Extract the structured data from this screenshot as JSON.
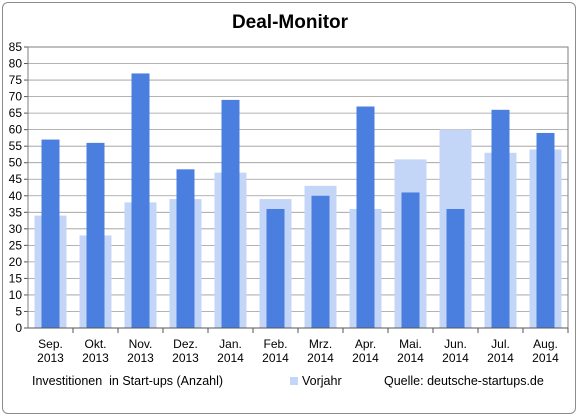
{
  "chart_data": {
    "type": "bar",
    "title": "Deal-Monitor",
    "categories": [
      [
        "Sep.",
        "2013"
      ],
      [
        "Okt.",
        "2013"
      ],
      [
        "Nov.",
        "2013"
      ],
      [
        "Dez.",
        "2013"
      ],
      [
        "Jan.",
        "2014"
      ],
      [
        "Feb.",
        "2014"
      ],
      [
        "Mrz.",
        "2014"
      ],
      [
        "Apr.",
        "2014"
      ],
      [
        "Mai.",
        "2014"
      ],
      [
        "Jun.",
        "2014"
      ],
      [
        "Jul.",
        "2014"
      ],
      [
        "Aug.",
        "2014"
      ]
    ],
    "series": [
      {
        "name": "Investitionen  in Start-ups (Anzahl)",
        "color": "#4a7fe0",
        "values": [
          57,
          56,
          77,
          48,
          69,
          36,
          40,
          67,
          41,
          36,
          66,
          59
        ]
      },
      {
        "name": "Vorjahr",
        "color": "#c4d6f7",
        "values": [
          34,
          28,
          38,
          39,
          47,
          39,
          43,
          36,
          51,
          60,
          53,
          54
        ]
      }
    ],
    "ylim": [
      0,
      85
    ],
    "yticks": [
      "0",
      "5",
      "10",
      "15",
      "20",
      "25",
      "30",
      "35",
      "40",
      "45",
      "50",
      "55",
      "60",
      "65",
      "70",
      "75",
      "80",
      "85"
    ],
    "grid": true,
    "legend": "bottom",
    "source": "Quelle: deutsche-startups.de"
  }
}
